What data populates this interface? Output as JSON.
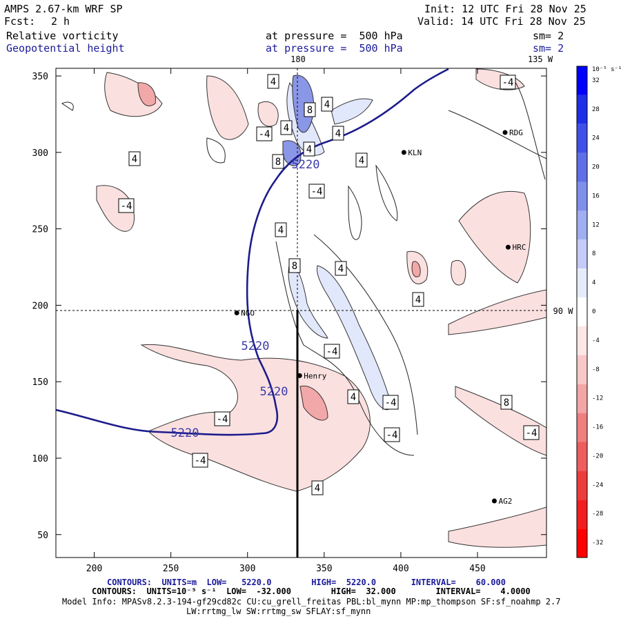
{
  "header": {
    "model": "AMPS 2.67-km WRF SP",
    "fcst_label": "Fcst:",
    "fcst_value": "2 h",
    "init": "Init: 12 UTC Fri 28 Nov 25",
    "valid": "Valid: 14 UTC Fri 28 Nov 25",
    "field1": "Relative vorticity",
    "field1_level": "at pressure =  500 hPa",
    "field1_sm": "sm= 2",
    "field2": "Geopotential height",
    "field2_level": "at pressure =  500 hPa",
    "field2_sm": "sm= 2"
  },
  "map": {
    "lon_180": "180",
    "lon_135w": "135 W",
    "lon_90w": "90 W",
    "x_ticks": [
      "200",
      "250",
      "300",
      "350",
      "400",
      "450"
    ],
    "y_ticks": [
      "350",
      "300",
      "250",
      "200",
      "150",
      "100",
      "50"
    ],
    "stations": [
      {
        "name": "RDG",
        "x": 468,
        "y": 313
      },
      {
        "name": "KLN",
        "x": 402,
        "y": 300
      },
      {
        "name": "HRC",
        "x": 470,
        "y": 238
      },
      {
        "name": "NGO",
        "x": 293,
        "y": 195
      },
      {
        "name": "Henry",
        "x": 334,
        "y": 154
      },
      {
        "name": "AG2",
        "x": 461,
        "y": 72
      }
    ],
    "height_labels": [
      "5220",
      "5220",
      "5220",
      "5220"
    ],
    "vort_labels": [
      "4",
      "-4",
      "4",
      "8",
      "4",
      "-4",
      "4",
      "4",
      "8",
      "4",
      "4",
      "-4",
      "-4",
      "4",
      "4",
      "8",
      "4",
      "-4",
      "4",
      "-4",
      "-4",
      "8",
      "-4",
      "-4",
      "-4",
      "4",
      "-4"
    ]
  },
  "colorbar": {
    "unit": "10⁻⁵ s⁻¹",
    "labels": [
      "32",
      "28",
      "24",
      "20",
      "16",
      "12",
      "8",
      "4",
      "0",
      "-4",
      "-8",
      "-12",
      "-16",
      "-20",
      "-24",
      "-28",
      "-32"
    ],
    "colors": [
      "#0000ff",
      "#1f2fe8",
      "#3f50e8",
      "#5f6fe8",
      "#7f8fec",
      "#a0aef2",
      "#c3ccf8",
      "#e6ebfc",
      "#ffffff",
      "#fce6e6",
      "#f8c8c8",
      "#f4a6a6",
      "#f08080",
      "#ee5e5e",
      "#ec3c3c",
      "#f01e1e",
      "#ff0000"
    ]
  },
  "footer": {
    "contours1": "CONTOURS:  UNITS=m  LOW=   5220.0        HIGH=  5220.0       INTERVAL=    60.000",
    "contours2": "CONTOURS:  UNITS=10⁻⁵ s⁻¹  LOW=  -32.000        HIGH=  32.000        INTERVAL=    4.0000",
    "model_info": "Model Info: MPASv8.2.3-194-gf29cd82c CU:cu_grell_freitas PBL:bl_mynn MP:mp_thompson SF:sf_noahmp 2.7",
    "model_info2": "LW:rrtmg_lw SW:rrtmg_sw SFLAY:sf_mynn"
  },
  "chart_data": {
    "type": "contour-map",
    "xlim": [
      175,
      495
    ],
    "ylim": [
      35,
      355
    ],
    "height_contour_value": 5220,
    "vorticity_contour_interval": 4,
    "vorticity_range": [
      -32,
      32
    ],
    "cross_section_x": 334,
    "reference_y": 195
  }
}
